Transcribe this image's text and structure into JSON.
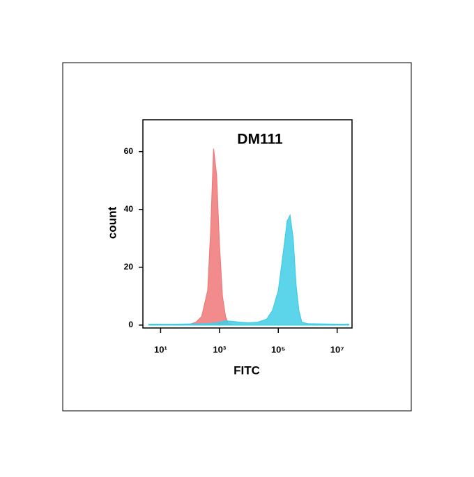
{
  "chart_data": {
    "type": "area",
    "title": "DM111",
    "xlabel": "FITC",
    "ylabel": "count",
    "xscale": "log",
    "x": [
      4,
      10,
      32,
      100,
      160,
      250,
      400,
      500,
      630,
      800,
      1000,
      1260,
      1600,
      2000,
      3200,
      5000,
      10000,
      20000,
      40000,
      63000,
      100000,
      160000,
      200000,
      250000,
      320000,
      400000,
      500000,
      630000,
      1000000,
      3200000,
      10000000,
      25000000
    ],
    "series": [
      {
        "color": "#f07878",
        "values": [
          0,
          0,
          0,
          0.3,
          1,
          3,
          12,
          32,
          61,
          52,
          28,
          10,
          3,
          0.5,
          0,
          0,
          0,
          0,
          0,
          0,
          0,
          0,
          0,
          0,
          0,
          0,
          0,
          0,
          0,
          0,
          0,
          0
        ]
      },
      {
        "color": "#40cde6",
        "values": [
          0.3,
          0.3,
          0.3,
          0.4,
          0.4,
          0.5,
          0.5,
          0.6,
          0.7,
          0.8,
          1,
          1.3,
          1.5,
          1.4,
          1.2,
          1,
          0.8,
          1,
          2,
          5,
          12,
          28,
          36,
          38,
          30,
          14,
          5,
          1,
          0.5,
          0.4,
          0.3,
          0.3
        ]
      }
    ],
    "xlim": [
      2.5,
      32000000
    ],
    "xticks": [
      {
        "value": 10,
        "label": "10¹"
      },
      {
        "value": 1000,
        "label": "10³"
      },
      {
        "value": 100000,
        "label": "10⁵"
      },
      {
        "value": 10000000,
        "label": "10⁷"
      }
    ],
    "ylim": [
      -1,
      71
    ],
    "yticks": [
      0,
      20,
      40,
      60
    ]
  }
}
